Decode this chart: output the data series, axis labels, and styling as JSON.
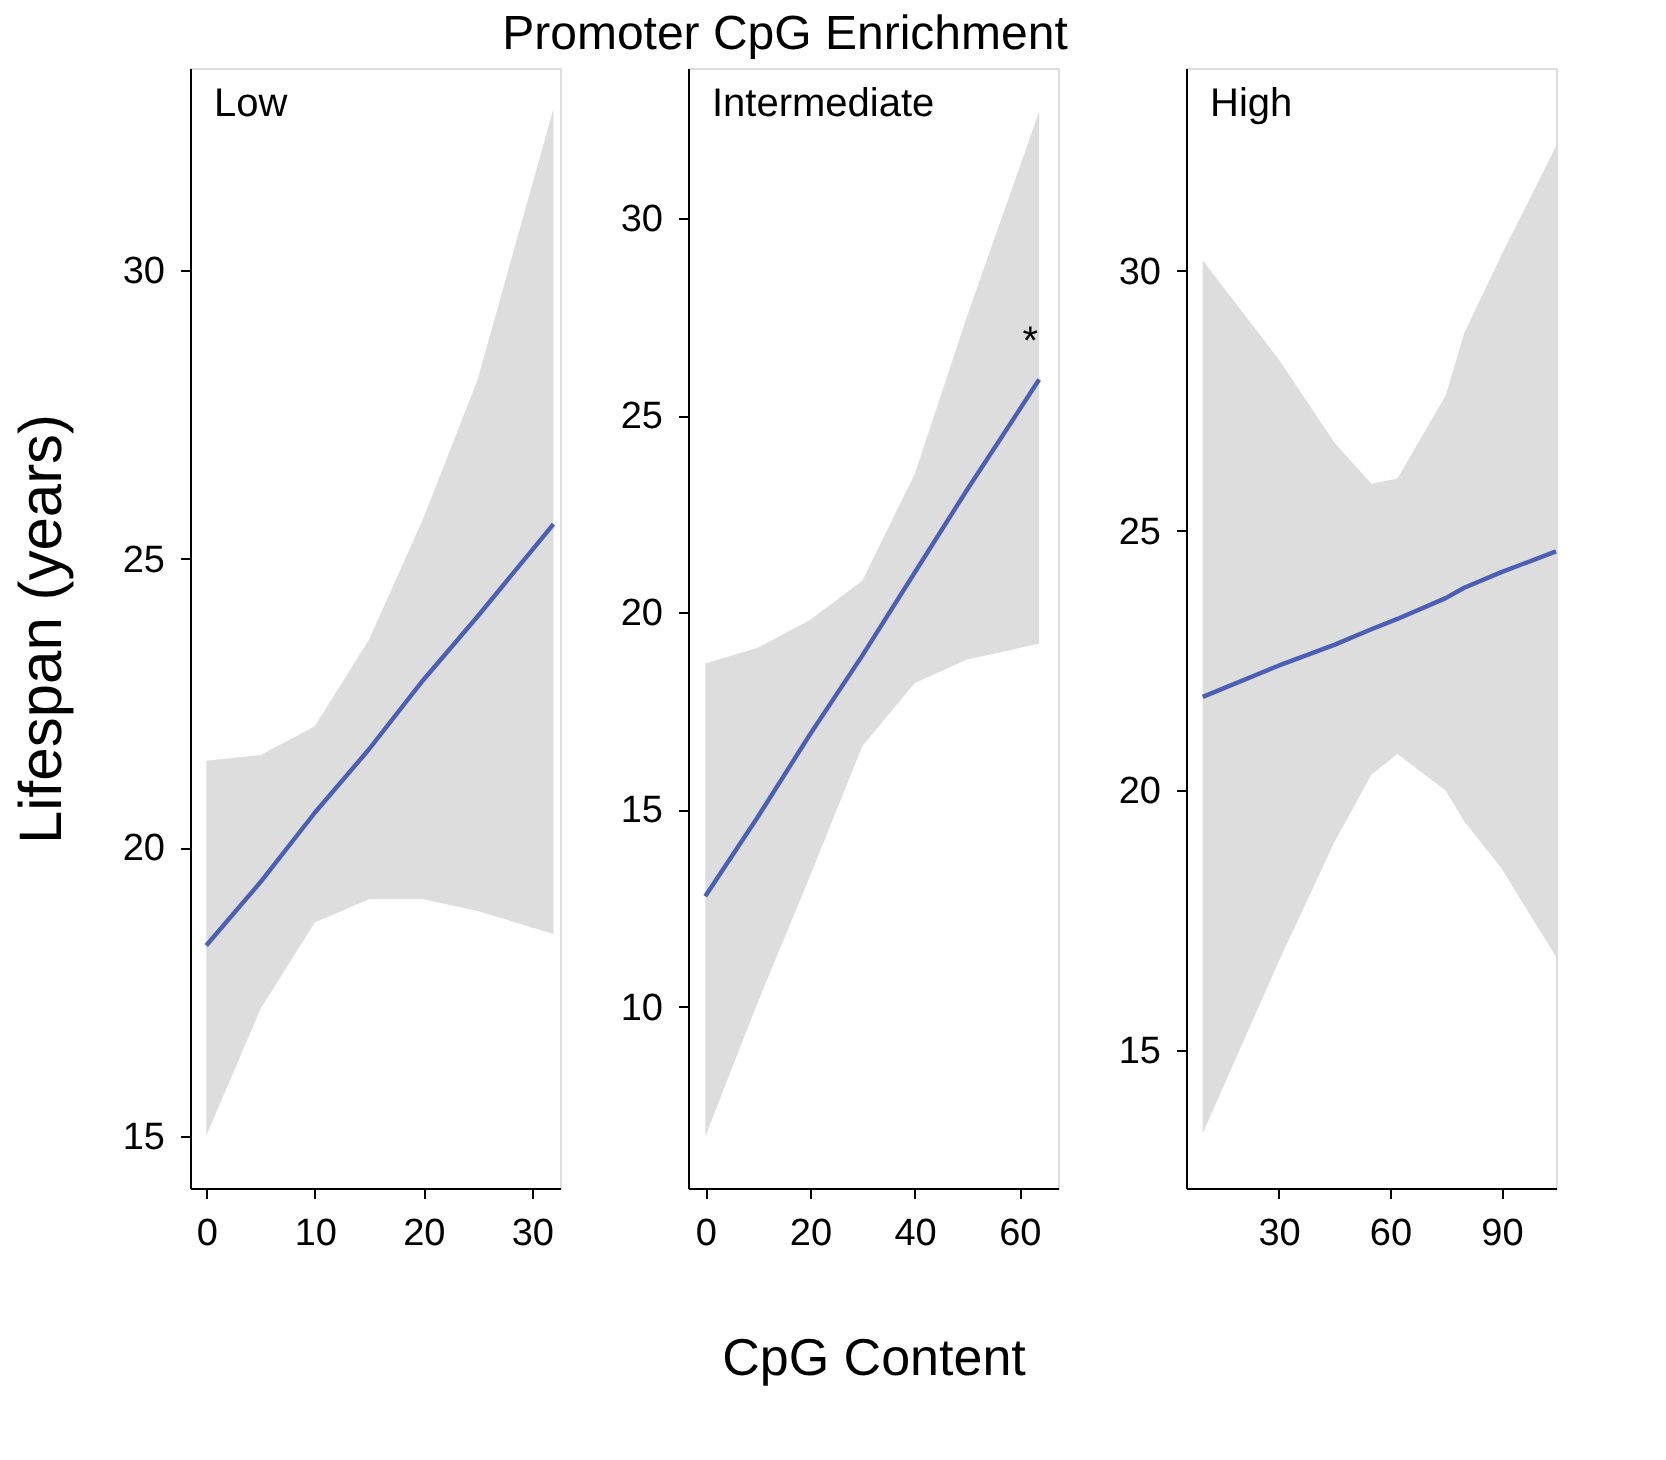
{
  "chart_data": [
    {
      "type": "line",
      "title": "Low",
      "ylabel": "Lifespan (years)",
      "xlim": [
        -1.5,
        32.6
      ],
      "ylim": [
        14.1,
        33.5
      ],
      "xticks": [
        0,
        10,
        20,
        30
      ],
      "yticks": [
        15,
        20,
        25,
        30
      ],
      "grid": false,
      "marker": "none",
      "series": [
        {
          "color": "#4a5fb5",
          "x": [
            0,
            5,
            10,
            15,
            20,
            25,
            32
          ],
          "values": [
            18.3,
            19.4,
            20.6,
            21.7,
            22.9,
            24.0,
            25.6
          ],
          "lower": [
            15.0,
            17.2,
            18.7,
            19.1,
            19.1,
            18.9,
            18.5
          ],
          "upper": [
            21.5,
            21.6,
            22.1,
            23.6,
            25.7,
            28.1,
            32.8
          ]
        }
      ]
    },
    {
      "type": "line",
      "title": "Intermediate",
      "xlabel": "CpG Content",
      "xlim": [
        -3.3,
        67.4
      ],
      "ylim": [
        5.4,
        33.8
      ],
      "xticks": [
        0,
        20,
        40,
        60
      ],
      "yticks": [
        10,
        15,
        20,
        25,
        30
      ],
      "grid": false,
      "marker": "none",
      "annotations": [
        "Promoter CpG Enrichment",
        "*"
      ],
      "series": [
        {
          "color": "#4a5fb5",
          "x": [
            0,
            10,
            20,
            30,
            40,
            50,
            63.8
          ],
          "values": [
            12.8,
            14.8,
            16.9,
            18.9,
            21.0,
            23.1,
            25.9
          ],
          "lower": [
            6.7,
            10.1,
            13.3,
            16.6,
            18.2,
            18.8,
            19.2
          ],
          "upper": [
            18.7,
            19.1,
            19.8,
            20.8,
            23.5,
            27.5,
            32.7
          ]
        }
      ]
    },
    {
      "type": "line",
      "title": "High",
      "xlim": [
        5.1,
        104.7
      ],
      "ylim": [
        12.35,
        33.9
      ],
      "xticks": [
        30,
        60,
        90
      ],
      "yticks": [
        15,
        20,
        25,
        30
      ],
      "grid": false,
      "marker": "none",
      "series": [
        {
          "color": "#4a5fb5",
          "x": [
            9.6,
            30,
            45,
            55,
            62,
            75,
            80,
            90,
            104.7
          ],
          "values": [
            21.8,
            22.4,
            22.8,
            23.1,
            23.3,
            23.7,
            23.9,
            24.2,
            24.6
          ],
          "lower": [
            13.4,
            16.7,
            19.0,
            20.3,
            20.7,
            20.0,
            19.4,
            18.5,
            16.8
          ],
          "upper": [
            30.2,
            28.3,
            26.7,
            25.9,
            26.0,
            27.6,
            28.8,
            30.3,
            32.4
          ]
        }
      ]
    }
  ]
}
